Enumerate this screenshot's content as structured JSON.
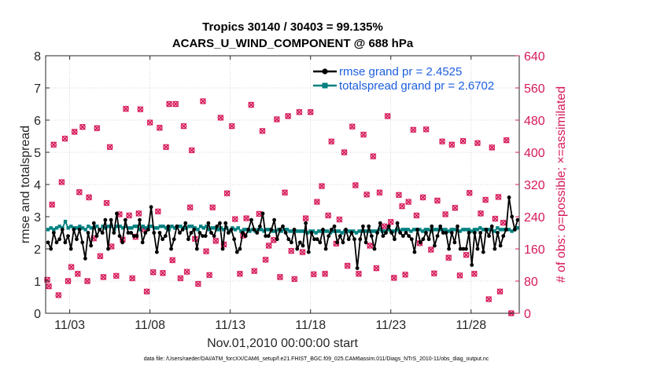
{
  "title_line1": "Tropics 30140 / 30403 = 99.135%",
  "title_line2": "ACARS_U_WIND_COMPONENT @ 688 hPa",
  "footer": "data file: /Users/raeder/DAI/ATM_forcXX/CAM6_setup/f.e21.FHIST_BGC.f09_025.CAM6assim.011/Diags_NTrS_2010-11/obs_diag_output.nc",
  "colors": {
    "rmse": "#000000",
    "spread": "#008080",
    "obs": "#d6195a",
    "legend_text": "#1c5fe0",
    "grid": "#c8c8c8"
  },
  "chart_data": {
    "type": "line",
    "xlabel": "Nov.01,2010 00:00:00 start",
    "ylabel_left": "rmse and totalspread",
    "ylabel_right": "# of obs: o=possible; ×=assimilated",
    "xlim": [
      1.5,
      31.0
    ],
    "ylim_left": [
      0,
      8
    ],
    "ylim_right": [
      0,
      640
    ],
    "x_ticks": [
      3,
      8,
      13,
      18,
      23,
      28
    ],
    "x_tick_labels": [
      "11/03",
      "11/08",
      "11/13",
      "11/18",
      "11/23",
      "11/28"
    ],
    "y_ticks_left": [
      0,
      1,
      2,
      3,
      4,
      5,
      6,
      7,
      8
    ],
    "y_ticks_right": [
      0,
      80,
      160,
      240,
      320,
      400,
      480,
      560,
      640
    ],
    "grid": true,
    "legend": [
      {
        "label": "rmse grand pr = 2.4525",
        "series": "rmse"
      },
      {
        "label": "totalspread grand pr = 2.6702",
        "series": "spread"
      }
    ],
    "series": [
      {
        "name": "rmse",
        "axis": "left",
        "values": [
          2.2,
          2.0,
          2.5,
          2.2,
          2.3,
          2.6,
          2.2,
          2.4,
          2.0,
          2.6,
          2.3,
          2.6,
          2.2,
          1.7,
          2.5,
          2.1,
          2.8,
          2.4,
          2.6,
          2.5,
          2.9,
          2.0,
          2.9,
          2.5,
          3.1,
          2.4,
          2.2,
          2.9,
          2.5,
          2.5,
          2.4,
          2.4,
          2.9,
          2.2,
          2.5,
          2.6,
          3.3,
          2.5,
          1.9,
          2.5,
          2.3,
          2.4,
          2.7,
          2.0,
          2.3,
          2.7,
          2.5,
          2.6,
          2.8,
          2.3,
          2.5,
          2.6,
          2.0,
          2.5,
          2.4,
          2.4,
          2.8,
          2.5,
          2.4,
          2.7,
          2.8,
          2.0,
          2.8,
          2.5,
          2.6,
          2.3,
          1.9,
          2.0,
          2.5,
          2.4,
          2.6,
          2.9,
          2.6,
          2.5,
          2.7,
          3.1,
          2.4,
          2.4,
          2.6,
          2.9,
          2.3,
          2.6,
          2.7,
          2.5,
          2.3,
          2.2,
          2.6,
          2.0,
          2.2,
          2.1,
          2.8,
          1.9,
          2.5,
          2.3,
          2.3,
          2.2,
          2.6,
          2.0,
          2.4,
          2.6,
          2.7,
          2.2,
          2.4,
          2.2,
          2.6,
          2.3,
          2.5,
          2.3,
          1.4,
          2.3,
          2.7,
          2.2,
          2.7,
          2.4,
          2.0,
          2.5,
          2.8,
          2.4,
          2.5,
          2.7,
          2.5,
          2.3,
          2.8,
          2.5,
          2.4,
          2.5,
          2.4,
          2.3,
          1.9,
          2.6,
          2.2,
          2.3,
          2.5,
          2.3,
          2.7,
          2.1,
          2.4,
          2.7,
          2.5,
          2.5,
          2.0,
          2.5,
          2.2,
          2.7,
          2.0,
          2.0,
          2.0,
          2.5,
          1.5,
          2.5,
          2.0,
          2.5,
          1.9,
          2.6,
          2.4,
          2.7,
          2.0,
          2.5,
          2.1,
          2.4,
          2.6,
          3.6,
          3.0,
          2.6,
          2.9
        ]
      },
      {
        "name": "totalspread",
        "axis": "left",
        "values": [
          2.6,
          2.65,
          2.6,
          2.65,
          2.7,
          2.65,
          2.85,
          2.65,
          2.7,
          2.65,
          2.65,
          2.7,
          2.65,
          2.6,
          2.7,
          2.65,
          2.65,
          2.7,
          2.6,
          2.7,
          2.65,
          2.7,
          2.7,
          2.6,
          2.7,
          2.7,
          2.65,
          2.7,
          2.65,
          2.65,
          2.7,
          2.7,
          2.6,
          2.7,
          2.65,
          2.7,
          2.7,
          2.65,
          2.65,
          2.7,
          2.7,
          2.65,
          2.6,
          2.7,
          2.65,
          2.7,
          2.7,
          2.65,
          2.65,
          2.7,
          2.7,
          2.65,
          2.6,
          2.7,
          2.65,
          2.7,
          2.6,
          2.65,
          2.65,
          2.6,
          2.65,
          2.6,
          2.65,
          2.55,
          2.65,
          2.6,
          2.65,
          2.55,
          2.6,
          2.6,
          2.55,
          2.6,
          2.55,
          2.6,
          2.6,
          2.55,
          2.6,
          2.6,
          2.55,
          2.55,
          2.6,
          2.55,
          2.6,
          2.6,
          2.55,
          2.55,
          2.55,
          2.55,
          2.55,
          2.55,
          2.5,
          2.55,
          2.55,
          2.5,
          2.55,
          2.55,
          2.55,
          2.55,
          2.5,
          2.55,
          2.55,
          2.55,
          2.5,
          2.55,
          2.55,
          2.55,
          2.55,
          2.5,
          2.55,
          2.55,
          2.55,
          2.55,
          2.55,
          2.55,
          2.55,
          2.6,
          2.55,
          2.55,
          2.6,
          2.55,
          2.55,
          2.6,
          2.55,
          2.6,
          2.6,
          2.6,
          2.55,
          2.6,
          2.6,
          2.6,
          2.55,
          2.6,
          2.6,
          2.55,
          2.6,
          2.6,
          2.6,
          2.6,
          2.6,
          2.55,
          2.6,
          2.6,
          2.6,
          2.55,
          2.6,
          2.6,
          2.6,
          2.55,
          2.6,
          2.6,
          2.65,
          2.6,
          2.6,
          2.6,
          2.6,
          2.55,
          2.65,
          2.6,
          2.6,
          2.6,
          2.6,
          2.55,
          2.6,
          2.65
        ]
      },
      {
        "name": "obs_count",
        "axis": "right",
        "points": [
          [
            1.6,
            83
          ],
          [
            1.7,
            67
          ],
          [
            1.9,
            270
          ],
          [
            2.0,
            419
          ],
          [
            2.3,
            45
          ],
          [
            2.5,
            326
          ],
          [
            2.7,
            434
          ],
          [
            2.9,
            80
          ],
          [
            3.1,
            115
          ],
          [
            3.3,
            451
          ],
          [
            3.5,
            98
          ],
          [
            3.6,
            301
          ],
          [
            3.8,
            463
          ],
          [
            4.1,
            80
          ],
          [
            4.2,
            288
          ],
          [
            4.5,
            186
          ],
          [
            4.7,
            460
          ],
          [
            4.9,
            142
          ],
          [
            5.1,
            90
          ],
          [
            5.3,
            274
          ],
          [
            5.5,
            413
          ],
          [
            5.6,
            166
          ],
          [
            5.9,
            93
          ],
          [
            6.1,
            246
          ],
          [
            6.3,
            183
          ],
          [
            6.5,
            508
          ],
          [
            6.7,
            243
          ],
          [
            6.9,
            87
          ],
          [
            7.1,
            190
          ],
          [
            7.3,
            248
          ],
          [
            7.4,
            507
          ],
          [
            7.6,
            209
          ],
          [
            7.8,
            54
          ],
          [
            8.0,
            474
          ],
          [
            8.2,
            102
          ],
          [
            8.5,
            253
          ],
          [
            8.6,
            461
          ],
          [
            8.8,
            100
          ],
          [
            9.0,
            413
          ],
          [
            9.2,
            520
          ],
          [
            9.4,
            132
          ],
          [
            9.6,
            520
          ],
          [
            9.9,
            87
          ],
          [
            10.1,
            465
          ],
          [
            10.3,
            103
          ],
          [
            10.5,
            263
          ],
          [
            10.6,
            405
          ],
          [
            10.8,
            185
          ],
          [
            11.0,
            73
          ],
          [
            11.3,
            527
          ],
          [
            11.5,
            154
          ],
          [
            11.7,
            95
          ],
          [
            11.9,
            263
          ],
          [
            12.1,
            180
          ],
          [
            12.4,
            486
          ],
          [
            12.6,
            171
          ],
          [
            12.8,
            298
          ],
          [
            13.1,
            465
          ],
          [
            13.3,
            234
          ],
          [
            13.6,
            98
          ],
          [
            13.8,
            193
          ],
          [
            14.0,
            236
          ],
          [
            14.3,
            518
          ],
          [
            14.5,
            105
          ],
          [
            14.8,
            247
          ],
          [
            15.0,
            453
          ],
          [
            15.2,
            133
          ],
          [
            15.4,
            168
          ],
          [
            15.7,
            182
          ],
          [
            15.9,
            482
          ],
          [
            16.1,
            90
          ],
          [
            16.4,
            300
          ],
          [
            16.6,
            490
          ],
          [
            16.8,
            155
          ],
          [
            17.0,
            85
          ],
          [
            17.3,
            500
          ],
          [
            17.5,
            152
          ],
          [
            17.7,
            236
          ],
          [
            18.0,
            500
          ],
          [
            18.2,
            97
          ],
          [
            18.4,
            277
          ],
          [
            18.7,
            316
          ],
          [
            18.9,
            98
          ],
          [
            19.1,
            243
          ],
          [
            19.3,
            427
          ],
          [
            19.6,
            173
          ],
          [
            19.8,
            233
          ],
          [
            20.1,
            400
          ],
          [
            20.3,
            118
          ],
          [
            20.6,
            464
          ],
          [
            20.8,
            318
          ],
          [
            21.0,
            98
          ],
          [
            21.3,
            444
          ],
          [
            21.5,
            295
          ],
          [
            21.7,
            168
          ],
          [
            21.9,
            390
          ],
          [
            22.1,
            112
          ],
          [
            22.3,
            300
          ],
          [
            22.6,
            216
          ],
          [
            22.8,
            490
          ],
          [
            23.0,
            227
          ],
          [
            23.2,
            88
          ],
          [
            23.5,
            294
          ],
          [
            23.7,
            266
          ],
          [
            23.9,
            96
          ],
          [
            24.1,
            277
          ],
          [
            24.4,
            456
          ],
          [
            24.6,
            243
          ],
          [
            24.8,
            174
          ],
          [
            25.0,
            288
          ],
          [
            25.2,
            457
          ],
          [
            25.5,
            158
          ],
          [
            25.7,
            99
          ],
          [
            25.9,
            280
          ],
          [
            26.2,
            427
          ],
          [
            26.4,
            246
          ],
          [
            26.6,
            138
          ],
          [
            26.8,
            419
          ],
          [
            27.0,
            262
          ],
          [
            27.3,
            94
          ],
          [
            27.5,
            428
          ],
          [
            27.7,
            145
          ],
          [
            27.9,
            299
          ],
          [
            28.2,
            98
          ],
          [
            28.4,
            423
          ],
          [
            28.6,
            248
          ],
          [
            28.9,
            282
          ],
          [
            29.1,
            35
          ],
          [
            29.3,
            412
          ],
          [
            29.5,
            235
          ],
          [
            29.7,
            289
          ],
          [
            29.8,
            54
          ],
          [
            30.0,
            225
          ],
          [
            30.2,
            430
          ],
          [
            30.5,
            0
          ]
        ]
      }
    ]
  }
}
